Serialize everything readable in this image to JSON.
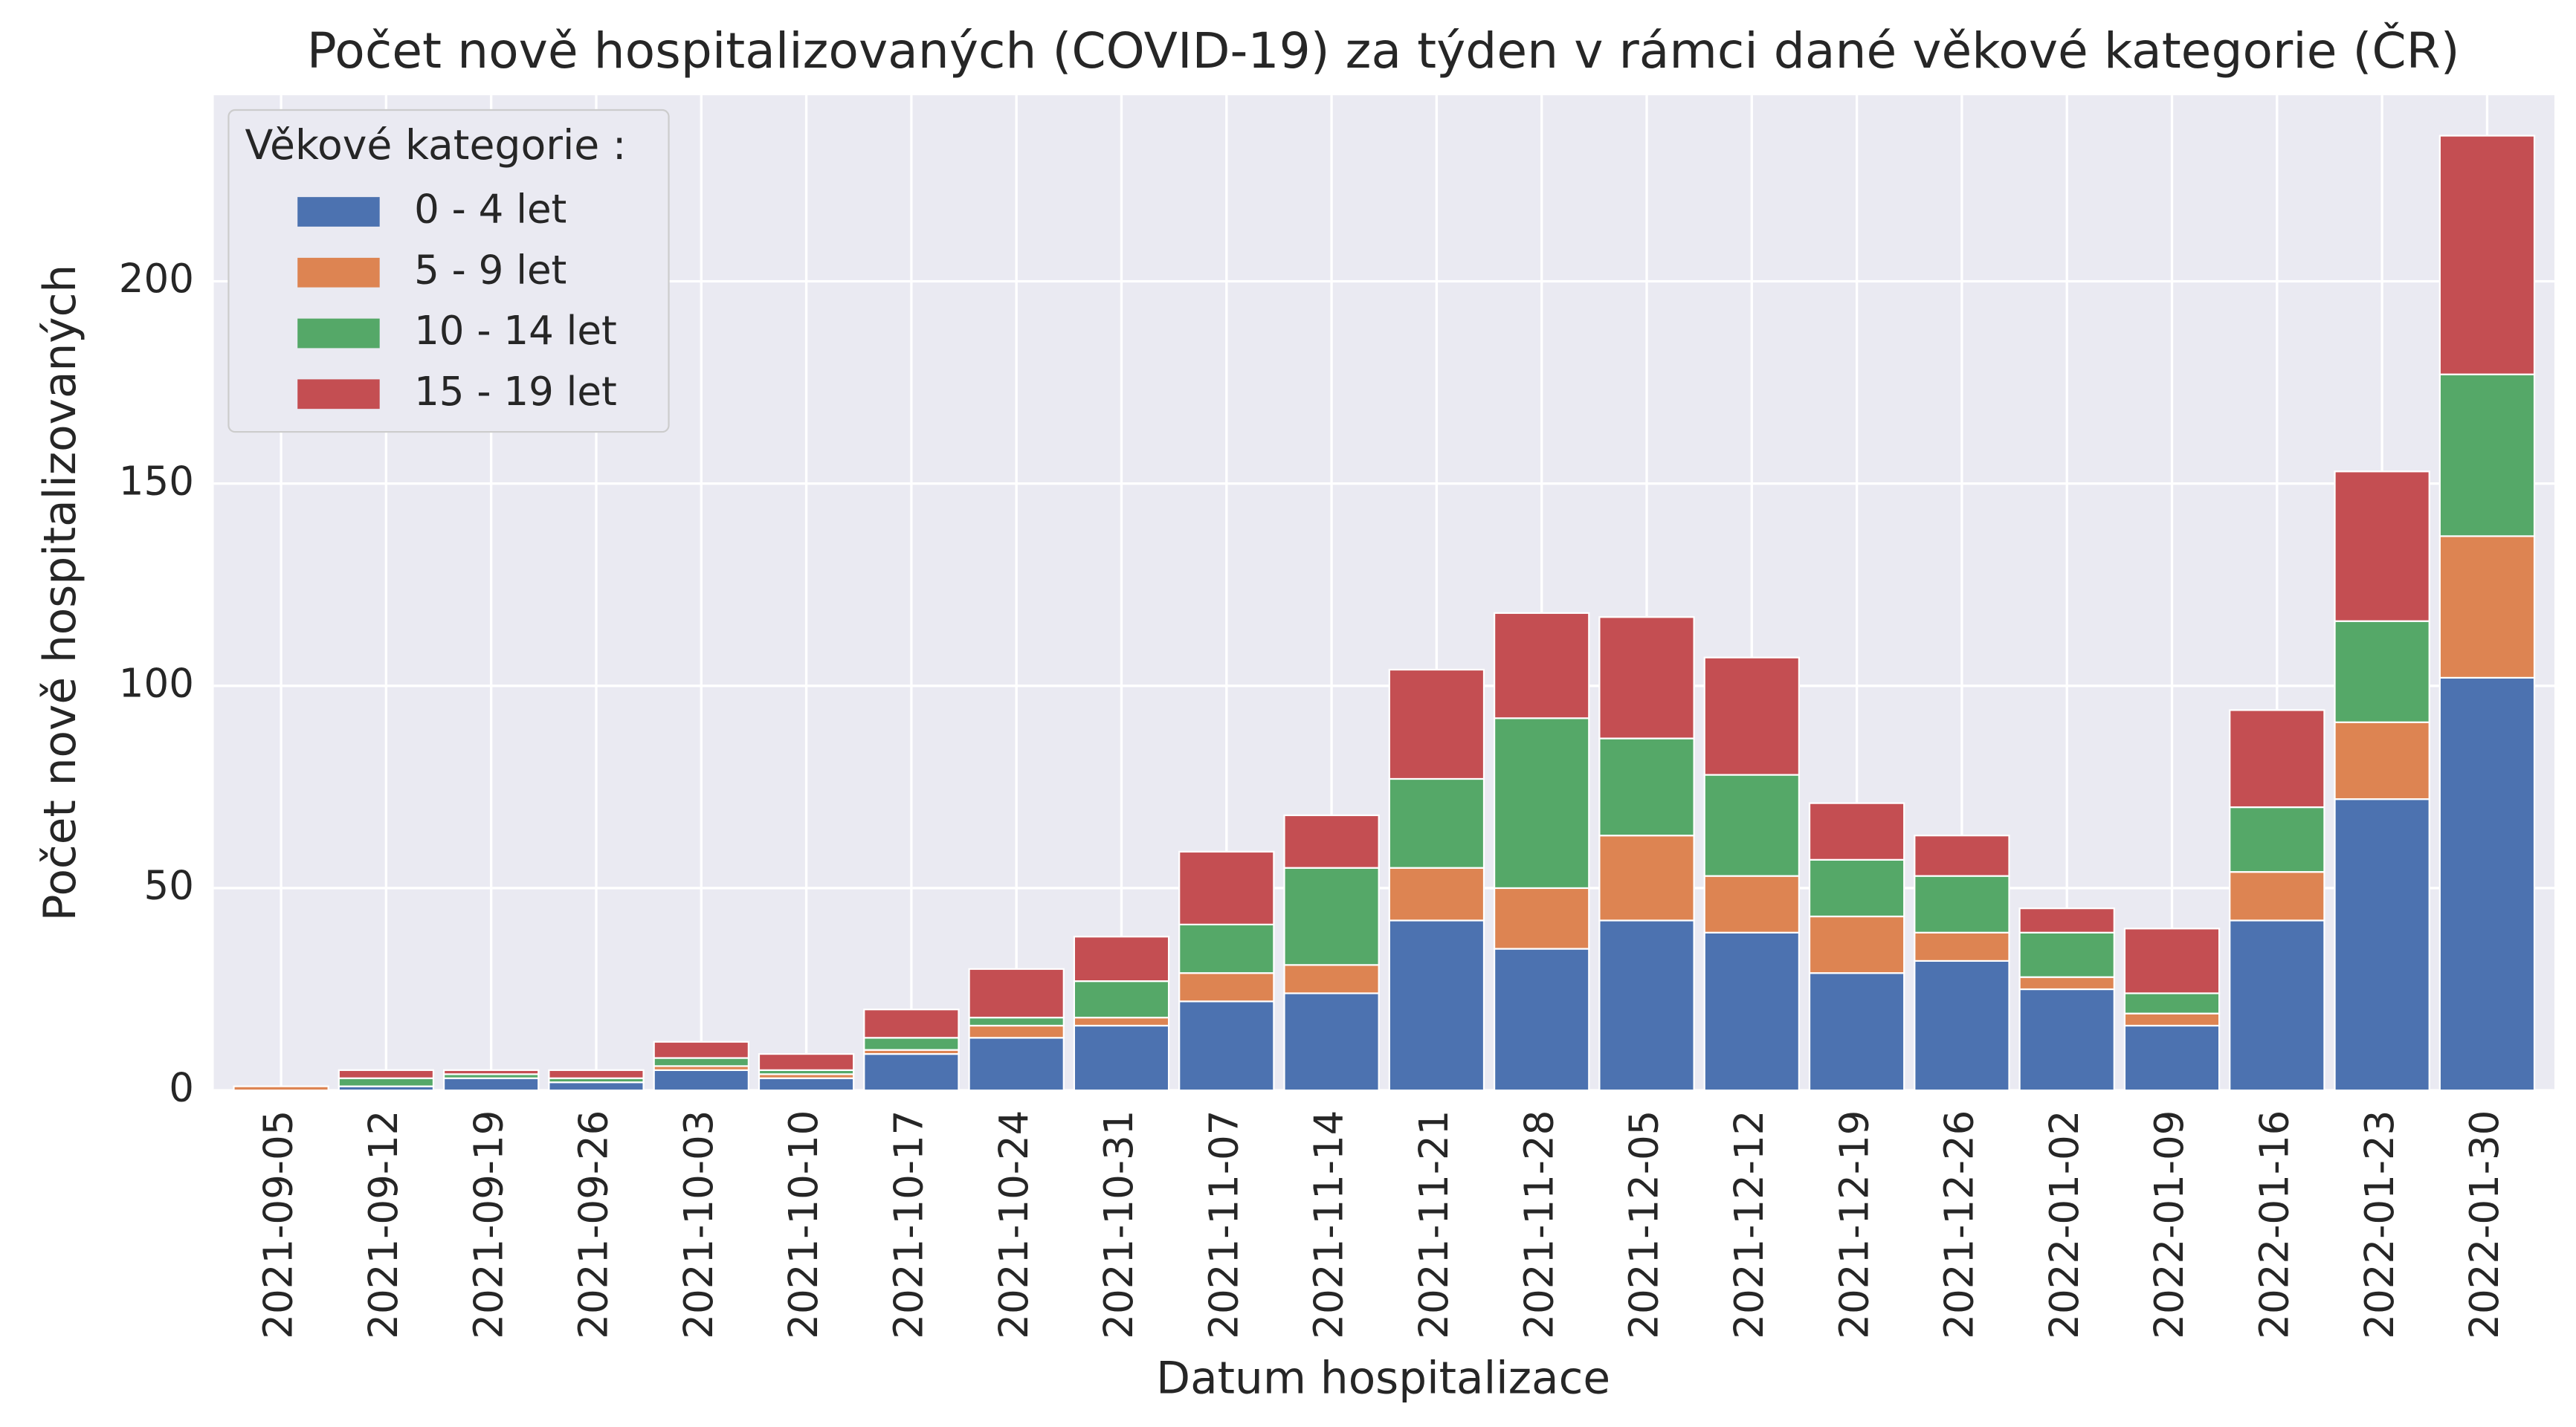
{
  "chart_data": {
    "type": "bar",
    "stacked": true,
    "title": "Počet nově hospitalizovaných (COVID-19) za týden v rámci dané věkové kategorie (ČR)",
    "x_label": "Datum hospitalizace",
    "y_label": "Počet nově hospitalizovaných",
    "legend_title": "Věkové kategorie :",
    "legend_position": "upper left",
    "grid": true,
    "categories": [
      "2021-09-05",
      "2021-09-12",
      "2021-09-19",
      "2021-09-26",
      "2021-10-03",
      "2021-10-10",
      "2021-10-17",
      "2021-10-24",
      "2021-10-31",
      "2021-11-07",
      "2021-11-14",
      "2021-11-21",
      "2021-11-28",
      "2021-12-05",
      "2021-12-12",
      "2021-12-19",
      "2021-12-26",
      "2022-01-02",
      "2022-01-09",
      "2022-01-16",
      "2022-01-23",
      "2022-01-30"
    ],
    "series": [
      {
        "name": "0 - 4 let",
        "color": "#4c72b0",
        "values": [
          0,
          1,
          3,
          2,
          5,
          3,
          9,
          13,
          16,
          22,
          24,
          42,
          35,
          42,
          39,
          29,
          32,
          25,
          16,
          42,
          72,
          102
        ]
      },
      {
        "name": "5 - 9 let",
        "color": "#dd8452",
        "values": [
          1,
          0,
          0,
          0,
          1,
          1,
          1,
          3,
          2,
          7,
          7,
          13,
          15,
          21,
          14,
          14,
          7,
          3,
          3,
          12,
          19,
          35
        ]
      },
      {
        "name": "10 - 14 let",
        "color": "#55a868",
        "values": [
          0,
          2,
          1,
          1,
          2,
          1,
          3,
          2,
          9,
          12,
          24,
          22,
          42,
          24,
          25,
          14,
          14,
          11,
          5,
          16,
          25,
          40
        ]
      },
      {
        "name": "15 - 19 let",
        "color": "#c44e52",
        "values": [
          0,
          2,
          1,
          2,
          4,
          4,
          7,
          12,
          11,
          18,
          13,
          27,
          26,
          30,
          29,
          14,
          10,
          6,
          16,
          24,
          37,
          59
        ]
      }
    ],
    "ylim": [
      0,
      246
    ],
    "yticks": [
      0,
      50,
      100,
      150,
      200
    ]
  }
}
